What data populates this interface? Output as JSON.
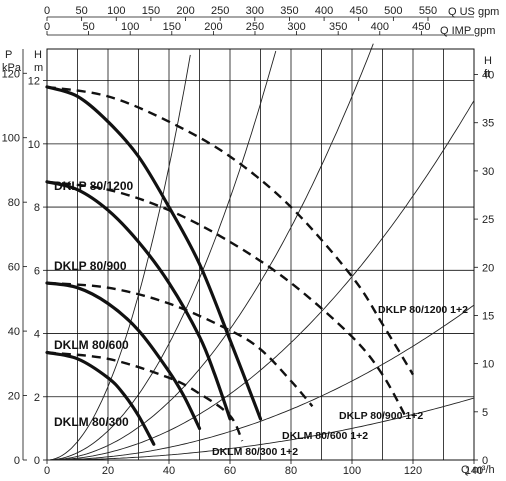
{
  "chart_data": {
    "type": "line",
    "xlabel": "Q m³/h",
    "ylabel_left_h": "H m",
    "ylabel_left_p": "P kPa",
    "ylabel_right": "H ft",
    "top_axis_us": "Q US gpm",
    "top_axis_imp": "Q IMP gpm",
    "xlim": [
      0,
      140
    ],
    "ylim": [
      0,
      13
    ],
    "x_ticks": [
      "0",
      "20",
      "40",
      "60",
      "80",
      "100",
      "120",
      "140"
    ],
    "h_ticks": [
      "0",
      "2",
      "4",
      "6",
      "8",
      "10",
      "12"
    ],
    "p_ticks": [
      "0",
      "20",
      "40",
      "60",
      "80",
      "100",
      "120"
    ],
    "ft_ticks": [
      "0",
      "5",
      "10",
      "15",
      "20",
      "25",
      "30",
      "35",
      "40"
    ],
    "us_ticks": [
      "0",
      "50",
      "100",
      "150",
      "200",
      "250",
      "300",
      "350",
      "400",
      "450",
      "500",
      "550"
    ],
    "imp_ticks": [
      "0",
      "50",
      "100",
      "150",
      "200",
      "250",
      "300",
      "350",
      "400",
      "450"
    ],
    "grid": true,
    "series": [
      {
        "name": "DKLP 80/1200",
        "style": "solid",
        "x": [
          0,
          10,
          20,
          30,
          40,
          50,
          60,
          70
        ],
        "y": [
          11.8,
          11.5,
          10.7,
          9.6,
          8.0,
          6.2,
          3.8,
          1.3
        ]
      },
      {
        "name": "DKLP 80/900",
        "style": "solid",
        "x": [
          0,
          10,
          20,
          30,
          40,
          50,
          55,
          60
        ],
        "y": [
          8.8,
          8.55,
          7.9,
          6.9,
          5.6,
          3.9,
          2.7,
          1.3
        ]
      },
      {
        "name": "DKLM 80/600",
        "style": "solid",
        "x": [
          0,
          10,
          20,
          30,
          40,
          45,
          50
        ],
        "y": [
          5.6,
          5.45,
          4.95,
          4.1,
          2.8,
          2.0,
          1.0
        ]
      },
      {
        "name": "DKLM 80/300",
        "style": "solid",
        "x": [
          0,
          10,
          20,
          25,
          30,
          35
        ],
        "y": [
          3.4,
          3.2,
          2.6,
          2.1,
          1.4,
          0.5
        ]
      },
      {
        "name": "DKLP 80/1200 1+2",
        "style": "dashed",
        "x": [
          0,
          20,
          40,
          60,
          80,
          100,
          110,
          120
        ],
        "y": [
          11.8,
          11.5,
          10.7,
          9.6,
          8.0,
          5.8,
          4.3,
          2.7
        ]
      },
      {
        "name": "DKLP 80/900 1+2",
        "style": "dashed",
        "x": [
          0,
          20,
          40,
          60,
          80,
          100,
          110,
          118
        ],
        "y": [
          8.8,
          8.55,
          7.9,
          6.9,
          5.6,
          3.9,
          2.7,
          1.3
        ]
      },
      {
        "name": "DKLM 80/600 1+2",
        "style": "dashed",
        "x": [
          0,
          20,
          40,
          60,
          70,
          80,
          87
        ],
        "y": [
          5.6,
          5.45,
          4.95,
          4.1,
          3.5,
          2.5,
          1.7
        ]
      },
      {
        "name": "DKLM 80/300 1+2",
        "style": "dashed",
        "x": [
          0,
          20,
          40,
          50,
          60,
          64
        ],
        "y": [
          3.4,
          3.2,
          2.6,
          2.1,
          1.4,
          0.6
        ]
      }
    ],
    "labels": {
      "p1200": "DKLP 80/1200",
      "p900": "DKLP 80/900",
      "m600": "DKLM 80/600",
      "m300": "DKLM 80/300",
      "p1200d": "DKLP 80/1200 1+2",
      "p900d": "DKLP 80/900 1+2",
      "m600d": "DKLM 80/600 1+2",
      "m300d": "DKLM 80/300 1+2"
    }
  }
}
